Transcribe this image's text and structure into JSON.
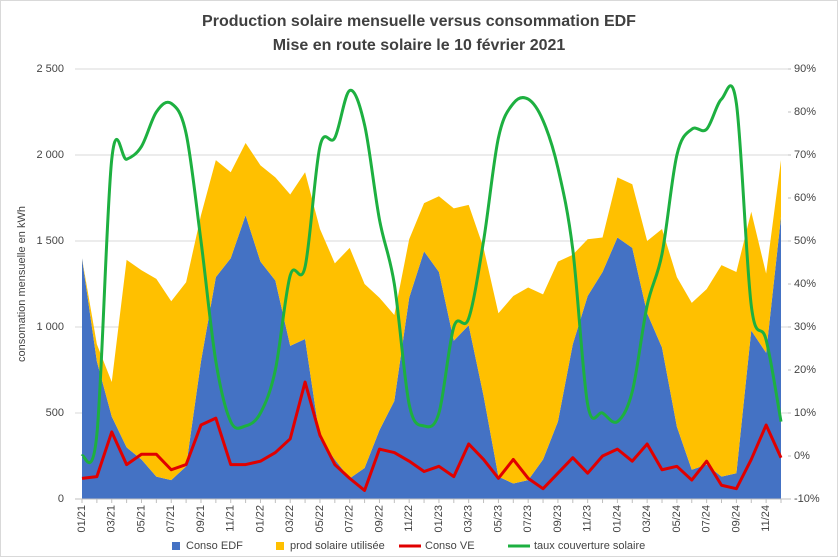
{
  "chart_data": {
    "type": "stacked_area_line",
    "title": "Production solaire mensuelle versus consommation EDF",
    "subtitle": "Mise en route solaire le 10 février 2021",
    "y_label": "consomation mensuelle en kWh",
    "categories": [
      "01/21",
      null,
      "03/21",
      null,
      "05/21",
      null,
      "07/21",
      null,
      "09/21",
      null,
      "11/21",
      null,
      "01/22",
      null,
      "03/22",
      null,
      "05/22",
      null,
      "07/22",
      null,
      "09/22",
      null,
      "11/22",
      null,
      "01/23",
      null,
      "03/23",
      null,
      "05/23",
      null,
      "07/23",
      null,
      "09/23",
      null,
      "11/23",
      null,
      "01/24",
      null,
      "03/24",
      null,
      "05/24",
      null,
      "07/24",
      null,
      "09/24",
      null,
      "11/24",
      null
    ],
    "series": [
      {
        "name": "Conso EDF",
        "color": "#4472c4",
        "kind": "area",
        "values": [
          1400,
          800,
          480,
          300,
          230,
          130,
          110,
          190,
          800,
          1290,
          1400,
          1650,
          1380,
          1270,
          890,
          930,
          350,
          230,
          120,
          180,
          400,
          570,
          1170,
          1440,
          1320,
          920,
          1010,
          600,
          130,
          90,
          110,
          230,
          450,
          900,
          1180,
          1320,
          1520,
          1460,
          1080,
          880,
          420,
          170,
          200,
          130,
          150,
          980,
          850,
          1640
        ]
      },
      {
        "name": "prod solaire utilisée",
        "color": "#ffc000",
        "kind": "area",
        "values": [
          0,
          100,
          200,
          1090,
          1100,
          1150,
          1040,
          1070,
          850,
          680,
          500,
          420,
          560,
          600,
          880,
          970,
          1220,
          1140,
          1340,
          1070,
          770,
          500,
          340,
          280,
          440,
          770,
          700,
          860,
          950,
          1090,
          1120,
          960,
          930,
          520,
          330,
          200,
          350,
          370,
          420,
          690,
          870,
          970,
          1020,
          1230,
          1170,
          690,
          460,
          330
        ]
      },
      {
        "name": "Conso VE",
        "color": "#e00000",
        "kind": "line",
        "values": [
          120,
          130,
          390,
          200,
          260,
          260,
          170,
          200,
          430,
          470,
          200,
          200,
          220,
          270,
          350,
          680,
          370,
          200,
          120,
          50,
          290,
          270,
          220,
          160,
          190,
          130,
          320,
          230,
          120,
          230,
          120,
          60,
          150,
          240,
          150,
          250,
          290,
          220,
          320,
          170,
          190,
          110,
          220,
          80,
          60,
          230,
          430,
          240
        ]
      },
      {
        "name": "taux couverture solaire",
        "color": "#1db040",
        "kind": "line",
        "axis": "y2",
        "values": [
          0,
          5,
          69,
          69,
          72,
          80,
          82,
          75,
          50,
          22,
          8,
          7,
          10,
          20,
          42,
          44,
          72,
          74,
          85,
          77,
          55,
          40,
          12,
          7,
          10,
          30,
          32,
          50,
          74,
          82,
          83,
          78,
          67,
          48,
          12,
          10,
          8,
          15,
          35,
          47,
          70,
          76,
          76,
          83,
          82,
          35,
          27,
          8
        ]
      }
    ],
    "ylim": [
      0,
      2500
    ],
    "yticks": [
      0,
      500,
      {
        "value": 1000,
        "label": "1 000"
      },
      {
        "value": 1500,
        "label": "1 500"
      },
      {
        "value": 2000,
        "label": "2 000"
      },
      {
        "value": 2500,
        "label": "2 500"
      }
    ],
    "y2lim": [
      -10,
      90
    ],
    "y2ticks": [
      {
        "value": -10,
        "label": "-10%"
      },
      {
        "value": 0,
        "label": "0%"
      },
      {
        "value": 10,
        "label": "10%"
      },
      {
        "value": 20,
        "label": "20%"
      },
      {
        "value": 30,
        "label": "30%"
      },
      {
        "value": 40,
        "label": "40%"
      },
      {
        "value": 50,
        "label": "50%"
      },
      {
        "value": 60,
        "label": "60%"
      },
      {
        "value": 70,
        "label": "70%"
      },
      {
        "value": 80,
        "label": "80%"
      },
      {
        "value": 90,
        "label": "90%"
      }
    ],
    "grid": true,
    "legend": "bottom"
  }
}
